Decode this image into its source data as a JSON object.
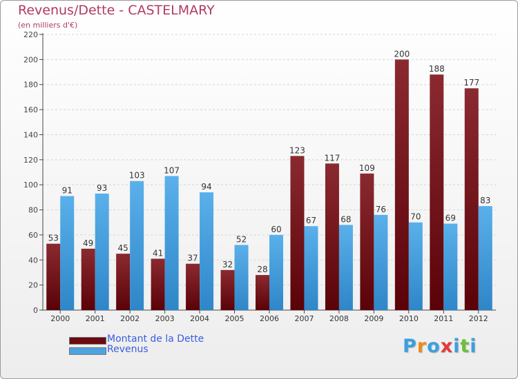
{
  "header": {
    "title": "Revenus/Dette - CASTELMARY",
    "subtitle": "(en milliers d'€)"
  },
  "legend": {
    "items": [
      {
        "label": "Montant de la Dette",
        "color": "#6b0a10"
      },
      {
        "label": "Revenus",
        "color": "#4da3e0"
      }
    ]
  },
  "branding": {
    "logo_letters": [
      "P",
      "r",
      "o",
      "x",
      "i",
      "t",
      "i"
    ],
    "logo_colors": [
      "#3aa0e0",
      "#f08a18",
      "#3aa0e0",
      "#e23a3a",
      "#3aa0e0",
      "#6bbf3a",
      "#3aa0e0"
    ]
  },
  "chart_data": {
    "type": "bar",
    "title": "Revenus/Dette - CASTELMARY",
    "ylabel": "(en milliers d'€)",
    "xlabel": "",
    "ylim": [
      0,
      220
    ],
    "yticks": [
      0,
      20,
      40,
      60,
      80,
      100,
      120,
      140,
      160,
      180,
      200,
      220
    ],
    "grid": true,
    "legend_position": "bottom-left",
    "categories": [
      "2000",
      "2001",
      "2002",
      "2003",
      "2004",
      "2005",
      "2006",
      "2007",
      "2008",
      "2009",
      "2010",
      "2011",
      "2012"
    ],
    "series": [
      {
        "name": "Montant de la Dette",
        "color": "#6b0a10",
        "values": [
          53,
          49,
          45,
          41,
          37,
          32,
          28,
          123,
          117,
          109,
          200,
          188,
          177
        ]
      },
      {
        "name": "Revenus",
        "color": "#4da3e0",
        "values": [
          91,
          93,
          103,
          107,
          94,
          52,
          60,
          67,
          68,
          76,
          70,
          69,
          83
        ]
      }
    ]
  }
}
